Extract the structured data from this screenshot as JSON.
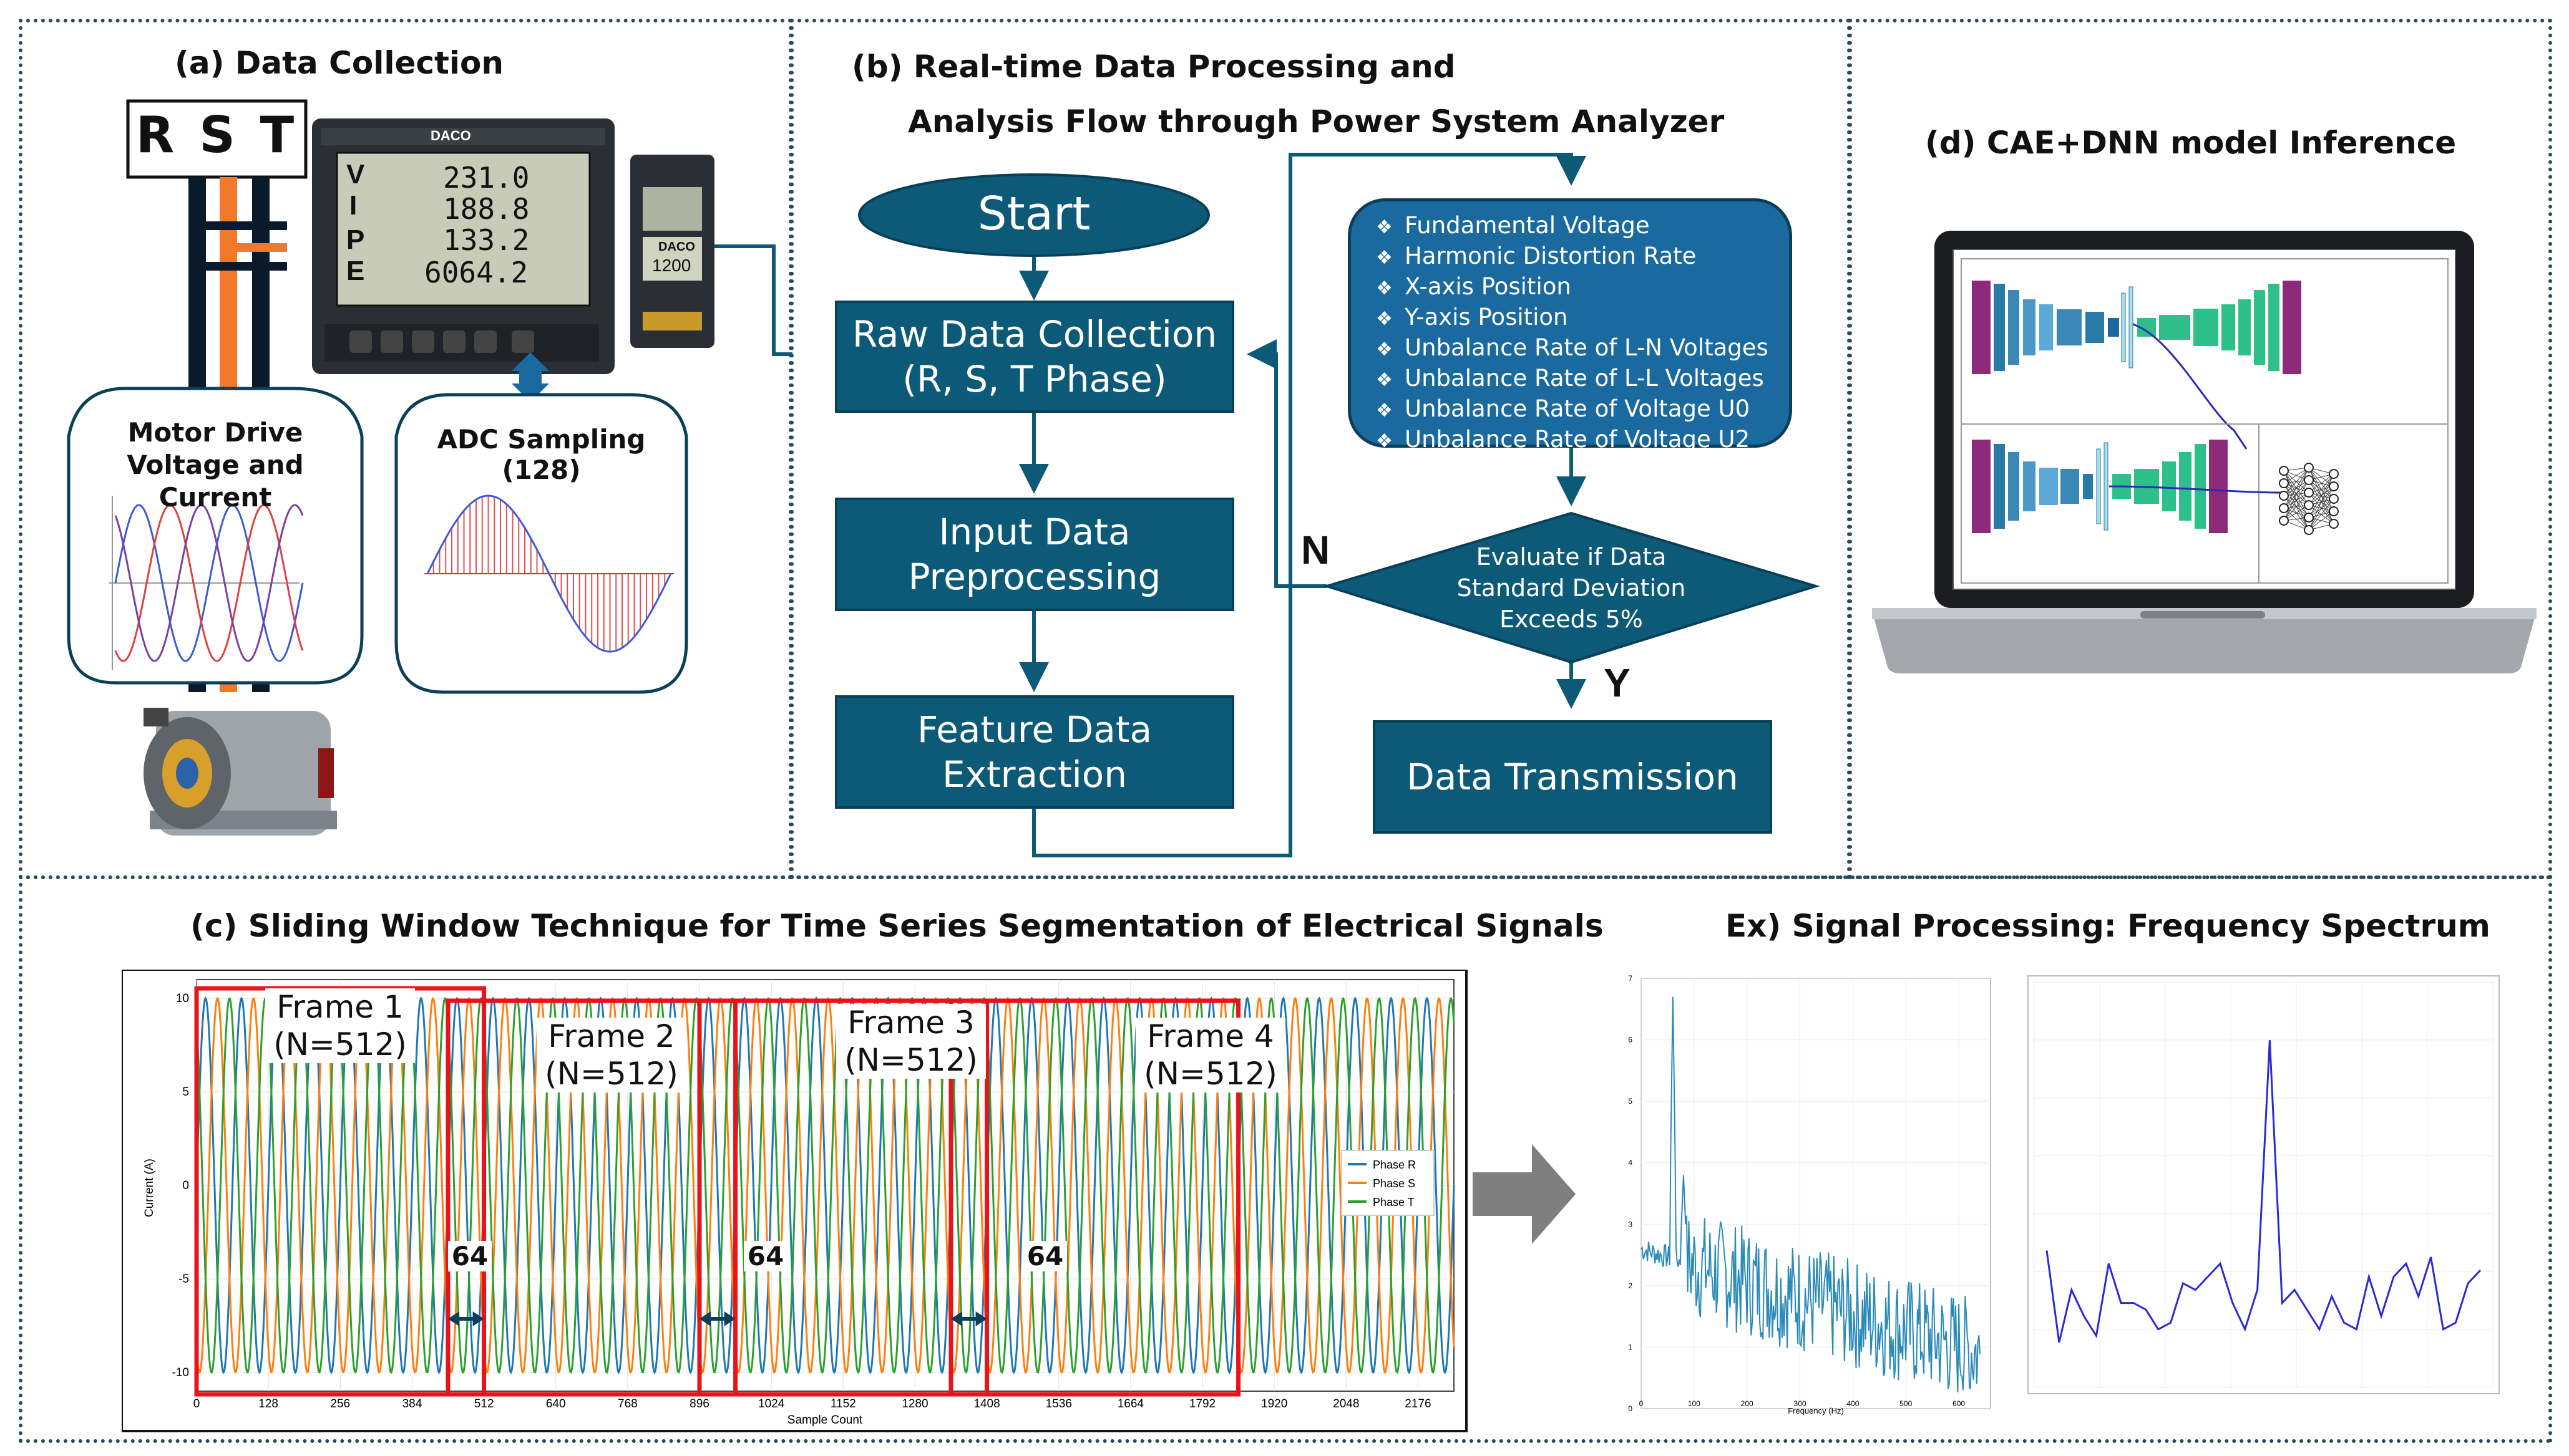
{
  "panel_a": {
    "heading": "(a) Data Collection",
    "rst_label": "R S T",
    "meter_readings": [
      "231.0",
      "188.8",
      "133.2",
      "6064.2"
    ],
    "meter_letters": [
      "V",
      "I",
      "P",
      "E"
    ],
    "meter_brand": "DACO",
    "module_brand": "DACO",
    "module_value": "1200",
    "motor_label": "Motor Drive\nVoltage and Current",
    "adc_label": "ADC Sampling (128)"
  },
  "panel_b": {
    "heading_line1": "(b) Real-time Data Processing and",
    "heading_line2": "Analysis Flow through Power System Analyzer",
    "start": "Start",
    "raw_line1": "Raw Data Collection",
    "raw_line2": "(R, S, T Phase)",
    "input_line1": "Input Data",
    "input_line2": "Preprocessing",
    "feature_line1": "Feature Data",
    "feature_line2": "Extraction",
    "features": [
      "Fundamental Voltage",
      "Harmonic Distortion Rate",
      "X-axis Position",
      "Y-axis Position",
      "Unbalance Rate of L-N Voltages",
      "Unbalance Rate of L-L Voltages",
      "Unbalance Rate of Voltage U0",
      "Unbalance Rate of Voltage U2"
    ],
    "decision_line1": "Evaluate if Data",
    "decision_line2": "Standard Deviation",
    "decision_line3": "Exceeds 5%",
    "no_label": "N",
    "yes_label": "Y",
    "transmission": "Data Transmission"
  },
  "panel_d": {
    "heading": "(d) CAE+DNN model Inference"
  },
  "panel_c": {
    "heading": "(c) Sliding Window Technique for Time Series Segmentation of Electrical Signals",
    "frames": [
      {
        "title": "Frame 1",
        "n": "(N=512)"
      },
      {
        "title": "Frame 2",
        "n": "(N=512)"
      },
      {
        "title": "Frame 3",
        "n": "(N=512)"
      },
      {
        "title": "Frame 4",
        "n": "(N=512)"
      }
    ],
    "overlap_label": "64"
  },
  "panel_ex": {
    "heading": "Ex) Signal Processing: Frequency Spectrum"
  },
  "colors": {
    "flow_box": "#0c5a78",
    "feature_box": "#1a6aa0",
    "phase_r": "#1f77b4",
    "phase_s": "#ff7f0e",
    "phase_t": "#2ca02c",
    "frame_red": "#e8141c"
  },
  "chart_data": [
    {
      "type": "line",
      "title": "",
      "xlabel": "Sample Count",
      "ylabel": "Current (A)",
      "xlim": [
        0,
        2240
      ],
      "ylim": [
        -11,
        11
      ],
      "x_ticks": [
        "0",
        "128",
        "256",
        "384",
        "512",
        "640",
        "768",
        "896",
        "1024",
        "1152",
        "1280",
        "1408",
        "1536",
        "1664",
        "1792",
        "1920",
        "2048",
        "2176"
      ],
      "y_ticks": [
        "10",
        "5",
        "0",
        "-5",
        "-10"
      ],
      "series": [
        {
          "name": "Phase R",
          "amplitude": 10,
          "period_samples": 64,
          "phase_deg": 0
        },
        {
          "name": "Phase S",
          "amplitude": 10,
          "period_samples": 64,
          "phase_deg": -120
        },
        {
          "name": "Phase T",
          "amplitude": 10,
          "period_samples": 64,
          "phase_deg": 120
        }
      ],
      "legend": [
        "Phase R",
        "Phase S",
        "Phase T"
      ],
      "legend_position": "right"
    },
    {
      "type": "line",
      "title": "",
      "xlabel": "Frequency (Hz)",
      "ylabel": "",
      "xlim": [
        0,
        660
      ],
      "ylim": [
        0,
        7
      ],
      "x_ticks": [
        "0",
        "100",
        "200",
        "300",
        "400",
        "500",
        "600"
      ],
      "y_ticks": [
        "7",
        "6",
        "5",
        "4",
        "3",
        "2",
        "1",
        "0"
      ],
      "peaks": [
        {
          "x": 60,
          "y": 6.7
        },
        {
          "x": 80,
          "y": 3.8
        }
      ]
    },
    {
      "type": "line",
      "title": "",
      "values": [
        1.8,
        0.4,
        1.2,
        0.8,
        0.5,
        1.6,
        1.0,
        1.0,
        0.9,
        0.6,
        0.7,
        1.3,
        1.2,
        1.4,
        1.6,
        1.0,
        0.6,
        1.2,
        5.0,
        1.0,
        1.2,
        0.9,
        0.6,
        1.1,
        0.7,
        0.6,
        1.4,
        0.8,
        1.4,
        1.6,
        1.1,
        1.7,
        0.6,
        0.7,
        1.3,
        1.5
      ]
    }
  ]
}
